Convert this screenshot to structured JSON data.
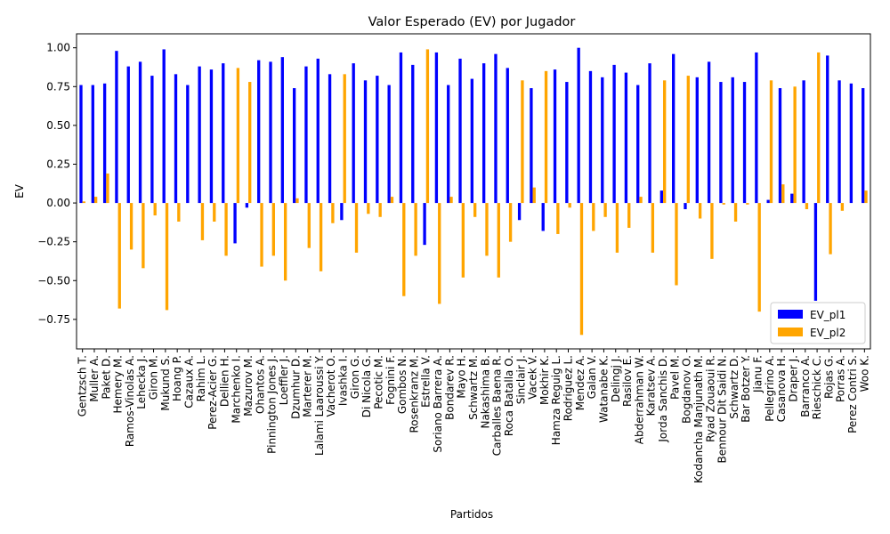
{
  "chart_data": {
    "type": "bar",
    "title": "Valor Esperado (EV) por Jugador",
    "xlabel": "Partidos",
    "ylabel": "EV",
    "categories": [
      "Gentzsch T.",
      "Muller A.",
      "Paket D.",
      "Hemery M.",
      "Ramos-Vinolas A.",
      "Lehecka J.",
      "Giron M.",
      "Mukund S.",
      "Hoang P.",
      "Cazaux A.",
      "Rahim L.",
      "Perez-Acier G.",
      "Dellien H.",
      "Marchenko I.",
      "Mazurov M.",
      "Ohantos A.",
      "Pinnington Jones J.",
      "Loeffler J.",
      "Dzumhur D.",
      "Marterer M.",
      "Lalami Laaroussi Y.",
      "Vacherot O.",
      "Ivashka I.",
      "Giron G.",
      "Di Nicola G.",
      "Pecotic M.",
      "Fognini F.",
      "Gombos N.",
      "Rosenkranz M.",
      "Estrella V.",
      "Soriano Barrera A.",
      "Bondarev R.",
      "Mayo H.",
      "Schwartz M.",
      "Nakashima B.",
      "Carballes Baena R.",
      "Roca Batalla O.",
      "Sinclair J.",
      "Vacek V.",
      "Mokhir K.",
      "Hamza Reguig L.",
      "Rodriguez L.",
      "Mendez A.",
      "Galan V.",
      "Watanabe K.",
      "Delingj J.",
      "Rasilov E.",
      "Abderrahman W.",
      "Karatsev A.",
      "Jorda Sanchis D.",
      "Pavel M.",
      "Bogdanov O.",
      "Kodancha Manjunath M.",
      "Ryad Zouaoui R.",
      "Bennour Dit Saidi N.",
      "Schwartz D.",
      "Bar Botzer Y.",
      "Jianu F.",
      "Pellegrino A.",
      "Casanova H.",
      "Draper J.",
      "Barranco A.",
      "Rieschick C.",
      "Rojas G.",
      "Porras A.",
      "Perez Contri S.",
      "Woo K."
    ],
    "series": [
      {
        "name": "EV_pl1",
        "color": "#0000ff",
        "values": [
          0.76,
          0.76,
          0.77,
          0.98,
          0.88,
          0.91,
          0.82,
          0.99,
          0.83,
          0.76,
          0.88,
          0.86,
          0.9,
          -0.26,
          -0.03,
          0.92,
          0.91,
          0.94,
          0.74,
          0.88,
          0.93,
          0.83,
          -0.11,
          0.9,
          0.79,
          0.82,
          0.76,
          0.97,
          0.89,
          -0.27,
          0.97,
          0.76,
          0.93,
          0.8,
          0.9,
          0.96,
          0.87,
          -0.11,
          0.74,
          -0.18,
          0.86,
          0.78,
          1.0,
          0.85,
          0.81,
          0.89,
          0.84,
          0.76,
          0.9,
          0.08,
          0.96,
          -0.04,
          0.81,
          0.91,
          0.78,
          0.81,
          0.78,
          0.97,
          0.02,
          0.74,
          0.06,
          0.79,
          -0.63,
          0.95,
          0.79,
          0.77,
          0.74
        ]
      },
      {
        "name": "EV_pl2",
        "color": "#ffa500",
        "values": [
          0.01,
          0.04,
          0.19,
          -0.68,
          -0.3,
          -0.42,
          -0.08,
          -0.69,
          -0.12,
          0.0,
          -0.24,
          -0.12,
          -0.34,
          0.87,
          0.78,
          -0.41,
          -0.34,
          -0.5,
          0.03,
          -0.29,
          -0.44,
          -0.13,
          0.83,
          -0.32,
          -0.07,
          -0.09,
          0.04,
          -0.6,
          -0.34,
          0.99,
          -0.65,
          0.04,
          -0.48,
          -0.09,
          -0.34,
          -0.48,
          -0.25,
          0.79,
          0.1,
          0.85,
          -0.2,
          -0.03,
          -0.85,
          -0.18,
          -0.09,
          -0.32,
          -0.16,
          0.04,
          -0.32,
          0.79,
          -0.53,
          0.82,
          -0.1,
          -0.36,
          -0.01,
          -0.12,
          -0.01,
          -0.7,
          0.79,
          0.12,
          0.75,
          -0.04,
          0.97,
          -0.33,
          -0.05,
          0.0,
          0.08
        ]
      }
    ],
    "ylim": [
      -0.94,
      1.09
    ],
    "yticks": [
      {
        "value": -0.75,
        "label": "−0.75"
      },
      {
        "value": -0.5,
        "label": "−0.50"
      },
      {
        "value": -0.25,
        "label": "−0.25"
      },
      {
        "value": 0,
        "label": "0.00"
      },
      {
        "value": 0.25,
        "label": "0.25"
      },
      {
        "value": 0.5,
        "label": "0.50"
      },
      {
        "value": 0.75,
        "label": "0.75"
      },
      {
        "value": 1,
        "label": "1.00"
      }
    ],
    "legend": "lower right"
  }
}
